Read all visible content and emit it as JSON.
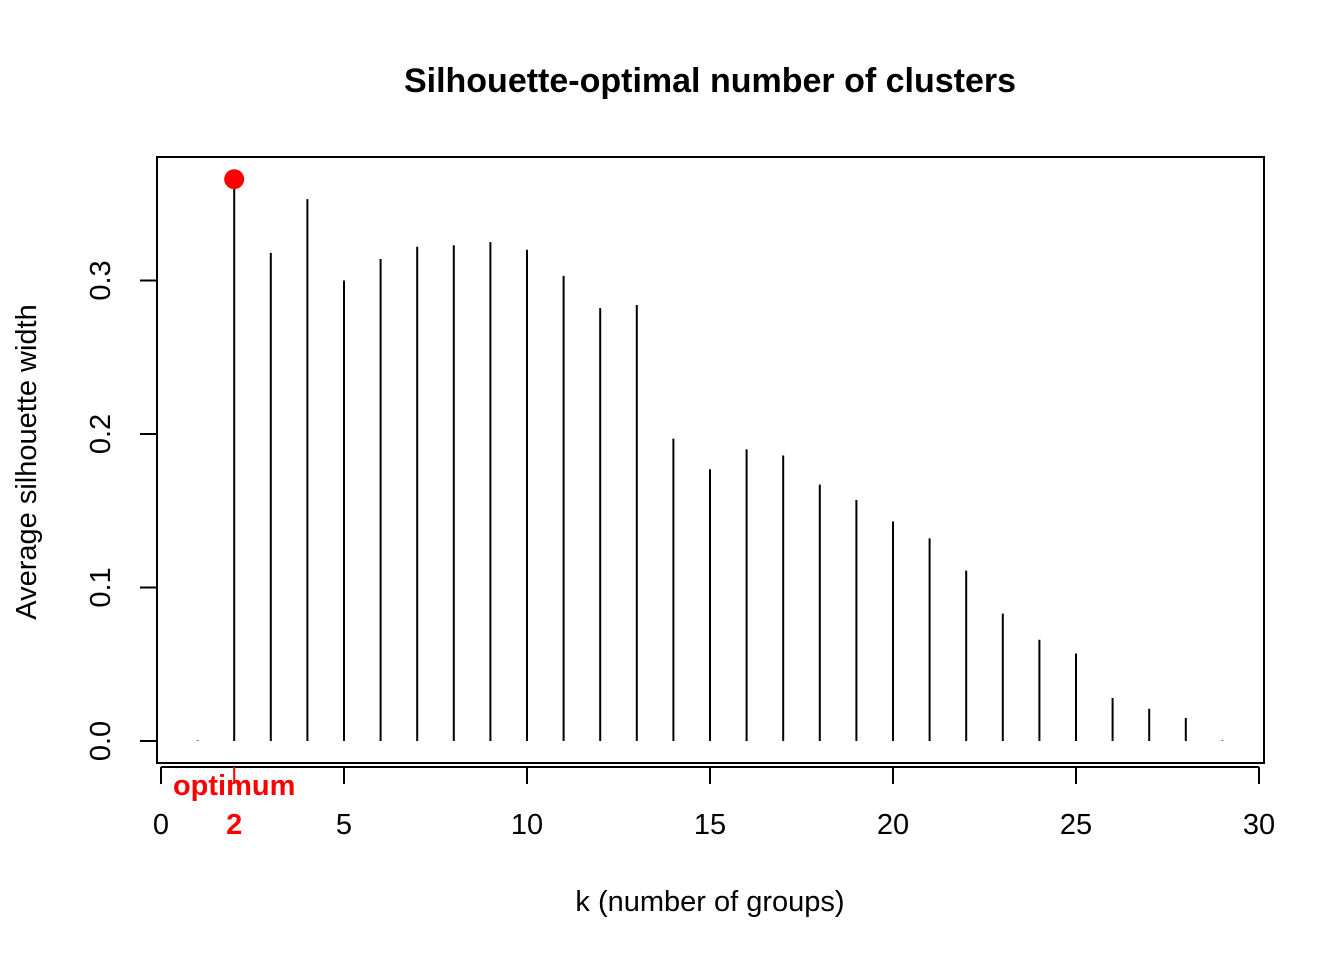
{
  "chart_data": {
    "type": "bar",
    "title": "Silhouette-optimal number of clusters",
    "xlabel": "k (number of groups)",
    "ylabel": "Average silhouette width",
    "x": [
      1,
      2,
      3,
      4,
      5,
      6,
      7,
      8,
      9,
      10,
      11,
      12,
      13,
      14,
      15,
      16,
      17,
      18,
      19,
      20,
      21,
      22,
      23,
      24,
      25,
      26,
      27,
      28,
      29
    ],
    "values": [
      0.0,
      0.366,
      0.318,
      0.353,
      0.3,
      0.314,
      0.322,
      0.323,
      0.325,
      0.32,
      0.303,
      0.282,
      0.284,
      0.197,
      0.177,
      0.19,
      0.186,
      0.167,
      0.157,
      0.143,
      0.132,
      0.111,
      0.083,
      0.066,
      0.057,
      0.028,
      0.021,
      0.015,
      0.0
    ],
    "xlim": [
      0,
      30
    ],
    "ylim": [
      0,
      0.38
    ],
    "xticks": [
      "0",
      "5",
      "10",
      "15",
      "20",
      "25",
      "30"
    ],
    "yticks": [
      "0.0",
      "0.1",
      "0.2",
      "0.3"
    ],
    "optimum": {
      "k": 2,
      "label": "optimum",
      "tick_label": "2",
      "color": "#ff0000"
    },
    "bar_color": "#000000",
    "grid": false
  }
}
